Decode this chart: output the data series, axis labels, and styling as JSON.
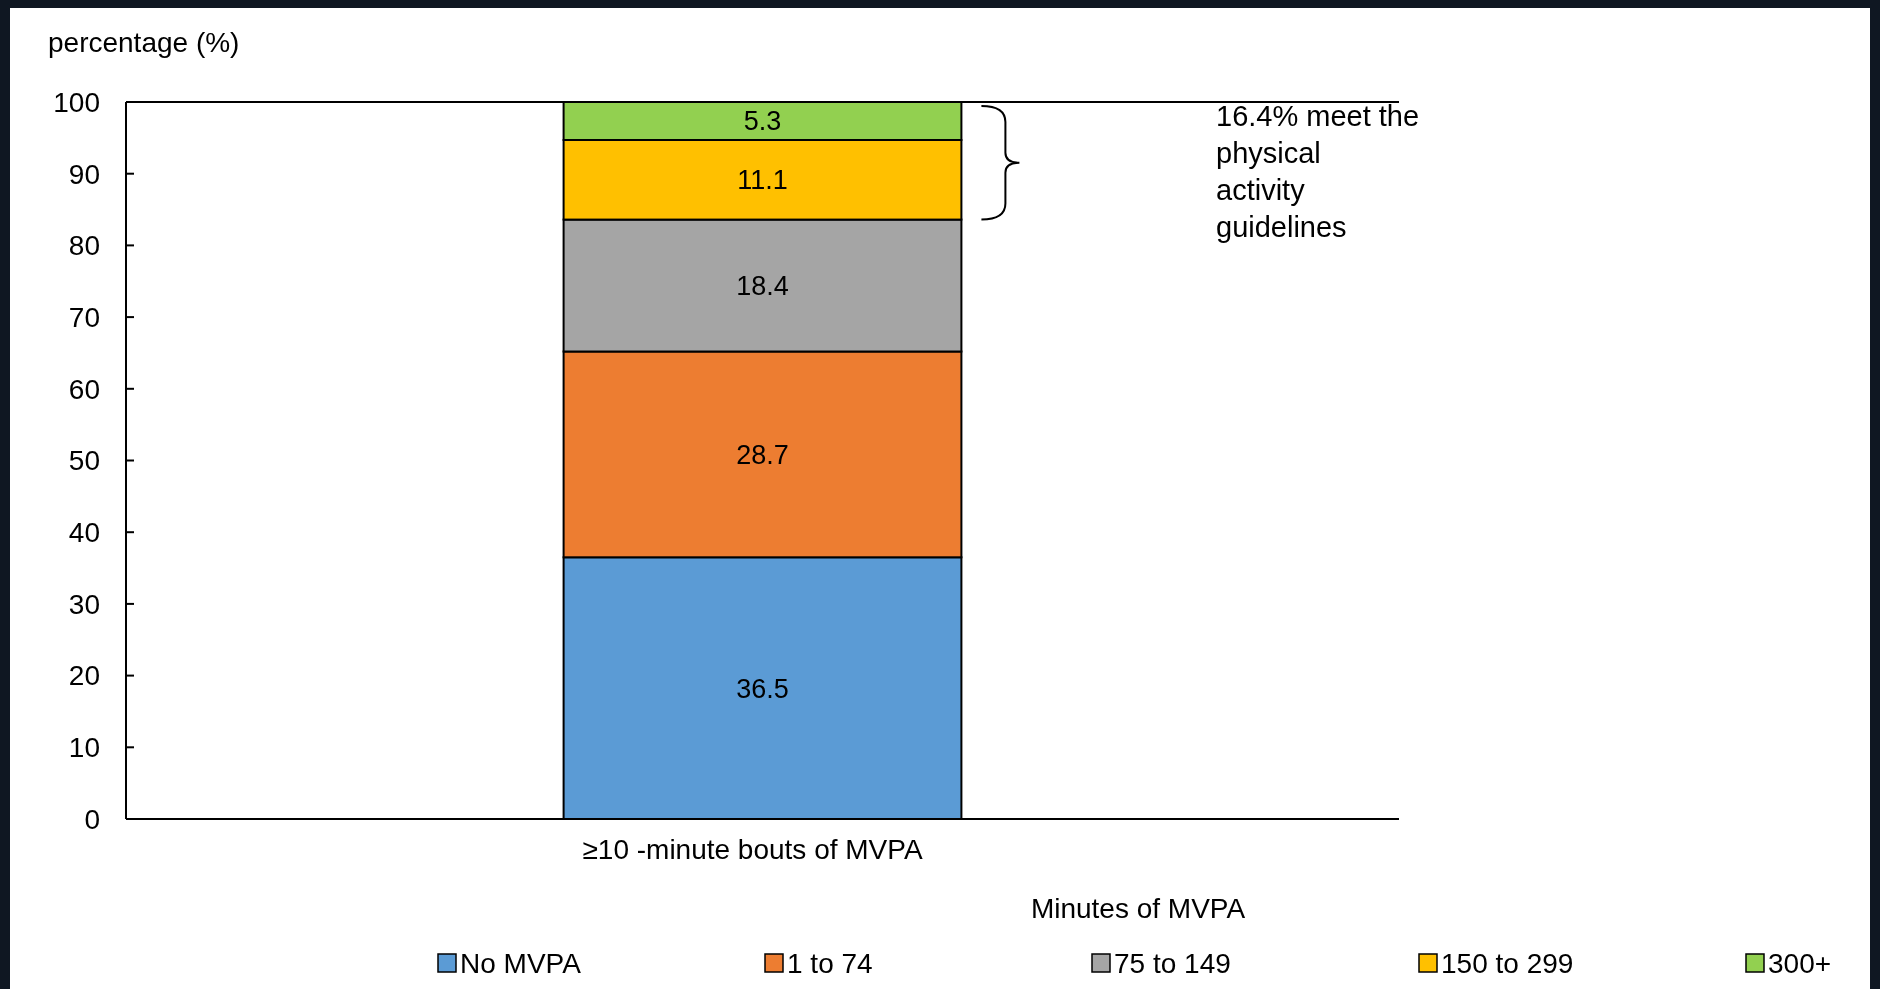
{
  "chart_data": {
    "type": "bar",
    "stacked": true,
    "ylabel": "percentage (%)",
    "legend_title": "Minutes of MVPA",
    "categories": [
      "≥10 -minute bouts of MVPA"
    ],
    "series": [
      {
        "name": "No MVPA",
        "color": "#5b9bd5",
        "values": [
          36.5
        ]
      },
      {
        "name": "1 to 74",
        "color": "#ed7d31",
        "values": [
          28.7
        ]
      },
      {
        "name": "75 to 149",
        "color": "#a5a5a5",
        "values": [
          18.4
        ]
      },
      {
        "name": "150 to 299",
        "color": "#ffc000",
        "values": [
          11.1
        ]
      },
      {
        "name": "300+",
        "color": "#92d050",
        "values": [
          5.3
        ]
      }
    ],
    "ylim": [
      0,
      100
    ],
    "yticks": [
      0,
      10,
      20,
      30,
      40,
      50,
      60,
      70,
      80,
      90,
      100
    ],
    "data_labels": true,
    "legend": "bottom",
    "grid": false,
    "annotations": [
      "16.4% meet the physical activity guidelines"
    ]
  }
}
